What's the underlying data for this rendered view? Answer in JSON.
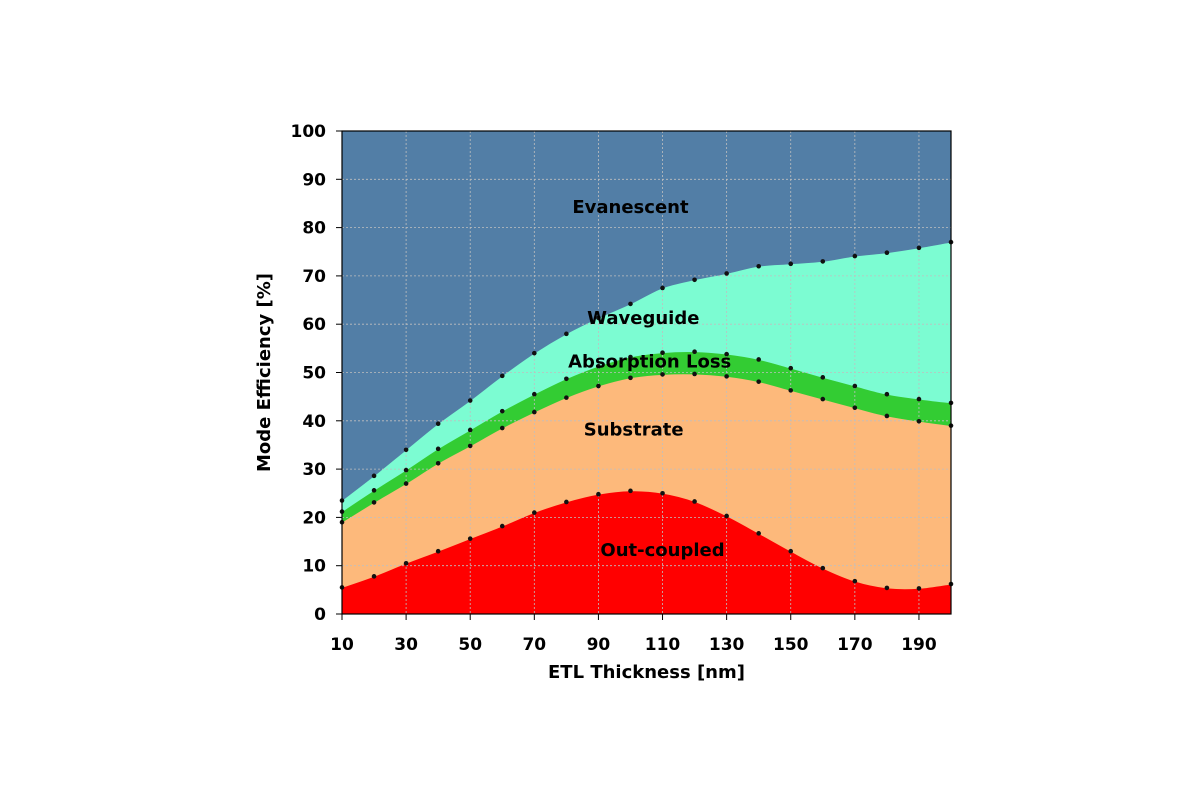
{
  "chart_data": {
    "type": "area",
    "stacked": true,
    "xlabel": "ETL Thickness [nm]",
    "ylabel": "Mode Efficiency [%]",
    "xlim": [
      10,
      200
    ],
    "ylim": [
      0,
      100
    ],
    "xticks": [
      10,
      30,
      50,
      70,
      90,
      110,
      130,
      150,
      170,
      190
    ],
    "yticks": [
      0,
      10,
      20,
      30,
      40,
      50,
      60,
      70,
      80,
      90,
      100
    ],
    "grid": true,
    "x": [
      10,
      20,
      30,
      40,
      50,
      60,
      70,
      80,
      90,
      100,
      110,
      120,
      130,
      140,
      150,
      160,
      170,
      180,
      190,
      200
    ],
    "series": [
      {
        "name": "Out-coupled",
        "color": "#ff0000",
        "values": [
          5.5,
          7.8,
          10.5,
          13,
          15.6,
          18.2,
          21,
          23.2,
          24.8,
          25.5,
          25,
          23.3,
          20.3,
          16.7,
          13,
          9.5,
          6.8,
          5.4,
          5.3,
          6.2
        ]
      },
      {
        "name": "Substrate",
        "color": "#fdb97b",
        "values": [
          13.5,
          15.3,
          16.5,
          18.2,
          19.2,
          20.3,
          20.8,
          21.6,
          22.4,
          23.4,
          24.6,
          26.4,
          28.9,
          31.4,
          33.3,
          35,
          35.9,
          35.6,
          34.6,
          32.8
        ]
      },
      {
        "name": "Absorption Loss",
        "color": "#33cc33",
        "values": [
          2.2,
          2.5,
          2.8,
          3,
          3.3,
          3.5,
          3.7,
          3.9,
          4.1,
          4.3,
          4.5,
          4.6,
          4.6,
          4.6,
          4.6,
          4.5,
          4.5,
          4.5,
          4.6,
          4.7
        ]
      },
      {
        "name": "Waveguide",
        "color": "#7cfcd2",
        "values": [
          2.3,
          3,
          4.2,
          5.2,
          6.1,
          7.3,
          8.5,
          9.3,
          10,
          11,
          13.4,
          14.9,
          16.7,
          19.3,
          21.6,
          24,
          26.9,
          29.3,
          31.3,
          33.3
        ]
      },
      {
        "name": "Evanescent",
        "color": "#527ea6",
        "values": [
          76.5,
          71.4,
          66,
          60.6,
          55.8,
          50.7,
          46,
          42,
          38.7,
          35.8,
          32.5,
          30.8,
          29.5,
          28,
          27.5,
          27,
          25.9,
          25.2,
          24.2,
          23.3
        ]
      }
    ]
  }
}
